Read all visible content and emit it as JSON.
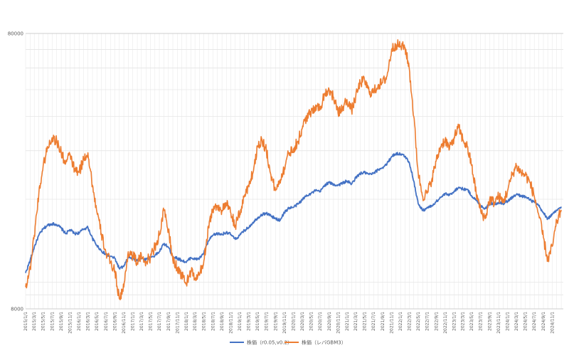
{
  "chart_data": {
    "type": "line",
    "y_scale": "log",
    "ylim": [
      8000,
      80000
    ],
    "y_ticks": [
      "80000",
      "8000"
    ],
    "y_tick_values": [
      80000,
      8000
    ],
    "grid": true,
    "legend_position": "bottom",
    "x_ticks": [
      "2015/1/1",
      "2015/3/1",
      "2015/5/1",
      "2015/7/1",
      "2015/9/1",
      "2015/11/1",
      "2016/1/1",
      "2016/3/1",
      "2016/5/1",
      "2016/7/1",
      "2016/9/1",
      "2016/11/1",
      "2017/1/1",
      "2017/3/1",
      "2017/5/1",
      "2017/7/1",
      "2017/9/1",
      "2017/11/1",
      "2018/1/1",
      "2018/3/1",
      "2018/5/1",
      "2018/7/1",
      "2018/9/1",
      "2018/11/1",
      "2019/1/1",
      "2019/3/1",
      "2019/5/1",
      "2019/7/1",
      "2019/9/1",
      "2019/11/1",
      "2020/1/1",
      "2020/3/1",
      "2020/5/1",
      "2020/7/1",
      "2020/9/1",
      "2020/11/1",
      "2021/1/1",
      "2021/3/1",
      "2021/5/1",
      "2021/7/1",
      "2021/9/1",
      "2021/11/1",
      "2022/1/1",
      "2022/3/1",
      "2022/5/1",
      "2022/7/1",
      "2022/9/1",
      "2022/11/1",
      "2023/1/1",
      "2023/3/1",
      "2023/5/1",
      "2023/7/1",
      "2023/9/1",
      "2023/11/1",
      "2024/1/1",
      "2024/3/1",
      "2024/5/1",
      "2024/7/1",
      "2024/9/1",
      "2024/11/1"
    ],
    "series": [
      {
        "name": "株価（r0.05,v0.2）",
        "color": "#4472c4",
        "points": [
          [
            "2015/1/1",
            10800
          ],
          [
            "2015/2/1",
            12000
          ],
          [
            "2015/3/1",
            13400
          ],
          [
            "2015/4/1",
            14800
          ],
          [
            "2015/5/1",
            15600
          ],
          [
            "2015/6/1",
            16100
          ],
          [
            "2015/7/1",
            16300
          ],
          [
            "2015/8/1",
            16200
          ],
          [
            "2015/9/1",
            15700
          ],
          [
            "2015/10/1",
            15000
          ],
          [
            "2015/11/1",
            15500
          ],
          [
            "2015/12/1",
            15000
          ],
          [
            "2016/1/1",
            15100
          ],
          [
            "2016/2/1",
            15600
          ],
          [
            "2016/3/1",
            15800
          ],
          [
            "2016/4/1",
            14400
          ],
          [
            "2016/5/1",
            13600
          ],
          [
            "2016/6/1",
            13000
          ],
          [
            "2016/7/1",
            12600
          ],
          [
            "2016/8/1",
            12400
          ],
          [
            "2016/9/1",
            12200
          ],
          [
            "2016/10/1",
            11200
          ],
          [
            "2016/11/1",
            11400
          ],
          [
            "2016/12/1",
            12300
          ],
          [
            "2017/1/1",
            12200
          ],
          [
            "2017/2/1",
            12000
          ],
          [
            "2017/3/1",
            12200
          ],
          [
            "2017/4/1",
            12100
          ],
          [
            "2017/5/1",
            12300
          ],
          [
            "2017/6/1",
            12500
          ],
          [
            "2017/7/1",
            12900
          ],
          [
            "2017/8/1",
            13800
          ],
          [
            "2017/9/1",
            13400
          ],
          [
            "2017/10/1",
            12400
          ],
          [
            "2017/11/1",
            12200
          ],
          [
            "2017/12/1",
            12000
          ],
          [
            "2018/1/1",
            11800
          ],
          [
            "2018/2/1",
            12300
          ],
          [
            "2018/3/1",
            12100
          ],
          [
            "2018/4/1",
            12200
          ],
          [
            "2018/5/1",
            12800
          ],
          [
            "2018/6/1",
            14100
          ],
          [
            "2018/7/1",
            14800
          ],
          [
            "2018/8/1",
            15000
          ],
          [
            "2018/9/1",
            14900
          ],
          [
            "2018/10/1",
            15200
          ],
          [
            "2018/11/1",
            14900
          ],
          [
            "2018/12/1",
            14300
          ],
          [
            "2019/1/1",
            14800
          ],
          [
            "2019/2/1",
            15400
          ],
          [
            "2019/3/1",
            15800
          ],
          [
            "2019/4/1",
            16500
          ],
          [
            "2019/5/1",
            17100
          ],
          [
            "2019/6/1",
            17600
          ],
          [
            "2019/7/1",
            17800
          ],
          [
            "2019/8/1",
            17400
          ],
          [
            "2019/9/1",
            17000
          ],
          [
            "2019/10/1",
            16800
          ],
          [
            "2019/11/1",
            17900
          ],
          [
            "2019/12/1",
            18600
          ],
          [
            "2020/1/1",
            18700
          ],
          [
            "2020/2/1",
            19200
          ],
          [
            "2020/3/1",
            19900
          ],
          [
            "2020/4/1",
            20700
          ],
          [
            "2020/5/1",
            21000
          ],
          [
            "2020/6/1",
            21500
          ],
          [
            "2020/7/1",
            21300
          ],
          [
            "2020/8/1",
            22500
          ],
          [
            "2020/9/1",
            23000
          ],
          [
            "2020/10/1",
            22600
          ],
          [
            "2020/11/1",
            22500
          ],
          [
            "2020/12/1",
            22900
          ],
          [
            "2021/1/1",
            23300
          ],
          [
            "2021/2/1",
            22700
          ],
          [
            "2021/3/1",
            23900
          ],
          [
            "2021/4/1",
            24800
          ],
          [
            "2021/5/1",
            25000
          ],
          [
            "2021/6/1",
            24600
          ],
          [
            "2021/7/1",
            24800
          ],
          [
            "2021/8/1",
            25600
          ],
          [
            "2021/9/1",
            26100
          ],
          [
            "2021/10/1",
            26900
          ],
          [
            "2021/11/1",
            28600
          ],
          [
            "2021/12/1",
            29300
          ],
          [
            "2022/1/1",
            29200
          ],
          [
            "2022/2/1",
            28600
          ],
          [
            "2022/3/1",
            27300
          ],
          [
            "2022/4/1",
            23300
          ],
          [
            "2022/5/1",
            19300
          ],
          [
            "2022/6/1",
            18200
          ],
          [
            "2022/7/1",
            18600
          ],
          [
            "2022/8/1",
            18900
          ],
          [
            "2022/9/1",
            19600
          ],
          [
            "2022/10/1",
            20300
          ],
          [
            "2022/11/1",
            20900
          ],
          [
            "2022/12/1",
            20700
          ],
          [
            "2023/1/1",
            21400
          ],
          [
            "2023/2/1",
            22100
          ],
          [
            "2023/3/1",
            21800
          ],
          [
            "2023/4/1",
            21700
          ],
          [
            "2023/5/1",
            20600
          ],
          [
            "2023/6/1",
            19800
          ],
          [
            "2023/7/1",
            19000
          ],
          [
            "2023/8/1",
            18500
          ],
          [
            "2023/9/1",
            19300
          ],
          [
            "2023/10/1",
            19200
          ],
          [
            "2023/11/1",
            19500
          ],
          [
            "2023/12/1",
            19300
          ],
          [
            "2024/1/1",
            19700
          ],
          [
            "2024/2/1",
            20300
          ],
          [
            "2024/3/1",
            20800
          ],
          [
            "2024/4/1",
            20600
          ],
          [
            "2024/5/1",
            20400
          ],
          [
            "2024/6/1",
            19900
          ],
          [
            "2024/7/1",
            19500
          ],
          [
            "2024/8/1",
            18900
          ],
          [
            "2024/9/1",
            17800
          ],
          [
            "2024/10/1",
            17000
          ],
          [
            "2024/11/1",
            17600
          ],
          [
            "2024/12/1",
            18200
          ],
          [
            "2025/1/1",
            18800
          ]
        ]
      },
      {
        "name": "株価（レバGBM3）",
        "color": "#ed7d31",
        "points": [
          [
            "2015/1/1",
            9600
          ],
          [
            "2015/2/1",
            11200
          ],
          [
            "2015/3/1",
            14800
          ],
          [
            "2015/4/1",
            21000
          ],
          [
            "2015/5/1",
            26500
          ],
          [
            "2015/6/1",
            31000
          ],
          [
            "2015/7/1",
            33500
          ],
          [
            "2015/8/1",
            32500
          ],
          [
            "2015/9/1",
            29500
          ],
          [
            "2015/10/1",
            27000
          ],
          [
            "2015/11/1",
            29000
          ],
          [
            "2015/12/1",
            25500
          ],
          [
            "2016/1/1",
            25000
          ],
          [
            "2016/2/1",
            28000
          ],
          [
            "2016/3/1",
            29500
          ],
          [
            "2016/4/1",
            22500
          ],
          [
            "2016/5/1",
            18000
          ],
          [
            "2016/6/1",
            15000
          ],
          [
            "2016/7/1",
            12800
          ],
          [
            "2016/8/1",
            11800
          ],
          [
            "2016/9/1",
            11000
          ],
          [
            "2016/10/1",
            8700
          ],
          [
            "2016/11/1",
            9600
          ],
          [
            "2016/12/1",
            12900
          ],
          [
            "2017/1/1",
            12500
          ],
          [
            "2017/2/1",
            11800
          ],
          [
            "2017/3/1",
            12400
          ],
          [
            "2017/4/1",
            11900
          ],
          [
            "2017/5/1",
            12300
          ],
          [
            "2017/6/1",
            13500
          ],
          [
            "2017/7/1",
            14800
          ],
          [
            "2017/8/1",
            18200
          ],
          [
            "2017/9/1",
            15500
          ],
          [
            "2017/10/1",
            12000
          ],
          [
            "2017/11/1",
            11300
          ],
          [
            "2017/12/1",
            10600
          ],
          [
            "2018/1/1",
            9900
          ],
          [
            "2018/2/1",
            11000
          ],
          [
            "2018/3/1",
            10300
          ],
          [
            "2018/4/1",
            10600
          ],
          [
            "2018/5/1",
            12000
          ],
          [
            "2018/6/1",
            16000
          ],
          [
            "2018/7/1",
            18400
          ],
          [
            "2018/8/1",
            19000
          ],
          [
            "2018/9/1",
            18200
          ],
          [
            "2018/10/1",
            19200
          ],
          [
            "2018/11/1",
            17800
          ],
          [
            "2018/12/1",
            16000
          ],
          [
            "2019/1/1",
            17800
          ],
          [
            "2019/2/1",
            20500
          ],
          [
            "2019/3/1",
            22500
          ],
          [
            "2019/4/1",
            25000
          ],
          [
            "2019/5/1",
            31000
          ],
          [
            "2019/6/1",
            33000
          ],
          [
            "2019/7/1",
            30000
          ],
          [
            "2019/8/1",
            24500
          ],
          [
            "2019/9/1",
            21500
          ],
          [
            "2019/10/1",
            23500
          ],
          [
            "2019/11/1",
            26000
          ],
          [
            "2019/12/1",
            29500
          ],
          [
            "2020/1/1",
            30500
          ],
          [
            "2020/2/1",
            32500
          ],
          [
            "2020/3/1",
            36000
          ],
          [
            "2020/4/1",
            40000
          ],
          [
            "2020/5/1",
            41000
          ],
          [
            "2020/6/1",
            44000
          ],
          [
            "2020/7/1",
            42500
          ],
          [
            "2020/8/1",
            48500
          ],
          [
            "2020/9/1",
            50000
          ],
          [
            "2020/10/1",
            47000
          ],
          [
            "2020/11/1",
            41000
          ],
          [
            "2020/12/1",
            43000
          ],
          [
            "2021/1/1",
            46000
          ],
          [
            "2021/2/1",
            42000
          ],
          [
            "2021/3/1",
            47000
          ],
          [
            "2021/4/1",
            53000
          ],
          [
            "2021/5/1",
            54000
          ],
          [
            "2021/6/1",
            49000
          ],
          [
            "2021/7/1",
            49000
          ],
          [
            "2021/8/1",
            52000
          ],
          [
            "2021/9/1",
            53000
          ],
          [
            "2021/10/1",
            56000
          ],
          [
            "2021/11/1",
            70000
          ],
          [
            "2021/12/1",
            73000
          ],
          [
            "2022/1/1",
            72000
          ],
          [
            "2022/2/1",
            71000
          ],
          [
            "2022/3/1",
            60000
          ],
          [
            "2022/4/1",
            40000
          ],
          [
            "2022/5/1",
            25000
          ],
          [
            "2022/6/1",
            20500
          ],
          [
            "2022/7/1",
            21000
          ],
          [
            "2022/8/1",
            23500
          ],
          [
            "2022/9/1",
            27500
          ],
          [
            "2022/10/1",
            31000
          ],
          [
            "2022/11/1",
            33000
          ],
          [
            "2022/12/1",
            30500
          ],
          [
            "2023/1/1",
            33500
          ],
          [
            "2023/2/1",
            36500
          ],
          [
            "2023/3/1",
            33000
          ],
          [
            "2023/4/1",
            31000
          ],
          [
            "2023/5/1",
            26500
          ],
          [
            "2023/6/1",
            21000
          ],
          [
            "2023/7/1",
            18200
          ],
          [
            "2023/8/1",
            17000
          ],
          [
            "2023/9/1",
            20000
          ],
          [
            "2023/10/1",
            19500
          ],
          [
            "2023/11/1",
            20500
          ],
          [
            "2023/12/1",
            19500
          ],
          [
            "2024/1/1",
            21500
          ],
          [
            "2024/2/1",
            24500
          ],
          [
            "2024/3/1",
            26500
          ],
          [
            "2024/4/1",
            25000
          ],
          [
            "2024/5/1",
            24500
          ],
          [
            "2024/6/1",
            23000
          ],
          [
            "2024/7/1",
            20500
          ],
          [
            "2024/8/1",
            17500
          ],
          [
            "2024/9/1",
            14500
          ],
          [
            "2024/10/1",
            12000
          ],
          [
            "2024/11/1",
            13500
          ],
          [
            "2024/12/1",
            16500
          ],
          [
            "2025/1/1",
            18300
          ]
        ]
      }
    ]
  }
}
